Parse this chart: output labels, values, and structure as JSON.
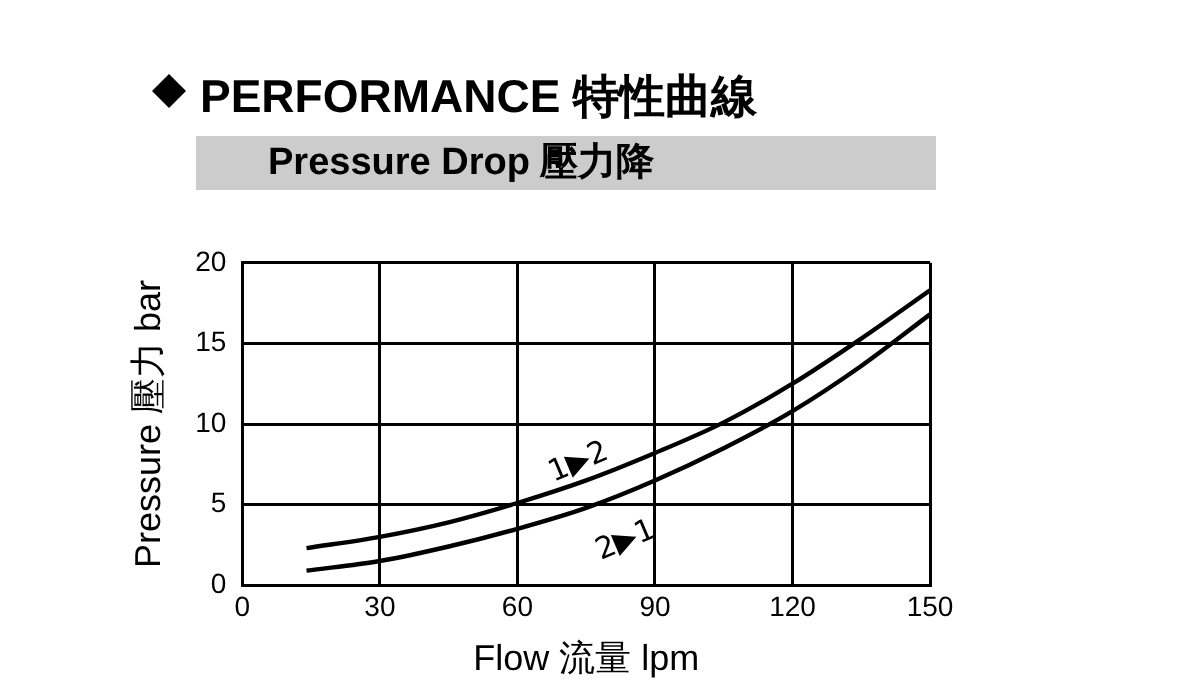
{
  "chart_data": {
    "type": "line",
    "title": "PERFORMANCE 特性曲線",
    "subtitle": "Pressure Drop 壓力降",
    "xlabel": "Flow 流量 lpm",
    "ylabel": "Pressure 壓力 bar",
    "series": [
      {
        "color": "#000000",
        "x": [
          14,
          30,
          45,
          60,
          75,
          90,
          105,
          120,
          135,
          150
        ],
        "values": [
          2.3,
          3.0,
          3.9,
          5.1,
          6.5,
          8.2,
          10.1,
          12.5,
          15.3,
          18.3
        ]
      },
      {
        "color": "#000000",
        "x": [
          14,
          30,
          45,
          60,
          75,
          90,
          105,
          120,
          135,
          150
        ],
        "values": [
          0.9,
          1.5,
          2.4,
          3.5,
          4.8,
          6.5,
          8.5,
          10.8,
          13.6,
          16.8
        ]
      }
    ],
    "xlim": [
      0,
      150
    ],
    "xticks": [
      0,
      30,
      60,
      90,
      120,
      150
    ],
    "ylim": [
      0,
      20
    ],
    "yticks": [
      0,
      5,
      10,
      15,
      20
    ],
    "grid": true,
    "legend": false,
    "marker": "none",
    "line_style": "solid",
    "annotations": [
      {
        "text": "1▶2",
        "x": 75,
        "y": 6.5
      },
      {
        "text": "2▶1",
        "x": 80,
        "y": 5.2
      }
    ]
  }
}
